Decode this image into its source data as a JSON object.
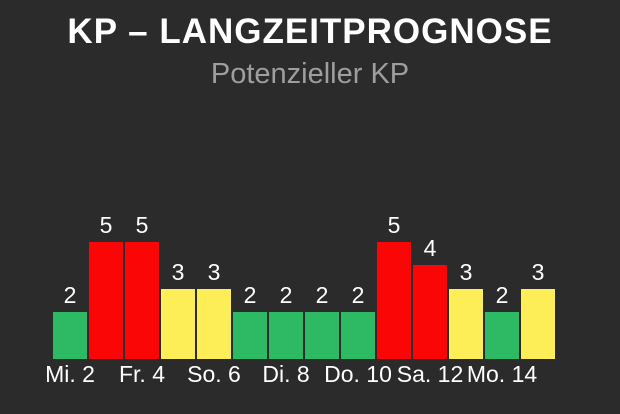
{
  "header": {
    "title": "KP – LANGZEITPROGNOSE",
    "subtitle": "Potenzieller KP"
  },
  "colors": {
    "background": "#2b2b2b",
    "title_text": "#ffffff",
    "subtitle_text": "#9e9e9e",
    "label_text": "#ffffff",
    "bar_green": "#2eba64",
    "bar_red": "#fa0606",
    "bar_yellow": "#fdee58"
  },
  "chart_data": {
    "type": "bar",
    "title": "KP – LANGZEITPROGNOSE",
    "subtitle": "Potenzieller KP",
    "values": [
      2,
      5,
      5,
      3,
      3,
      2,
      2,
      2,
      2,
      5,
      4,
      3,
      2,
      3
    ],
    "value_labels": [
      "2",
      "5",
      "5",
      "3",
      "3",
      "2",
      "2",
      "2",
      "2",
      "5",
      "4",
      "3",
      "2",
      "3"
    ],
    "bar_colors": [
      "green",
      "red",
      "red",
      "yellow",
      "yellow",
      "green",
      "green",
      "green",
      "green",
      "red",
      "red",
      "yellow",
      "green",
      "yellow"
    ],
    "color_map": {
      "green": "#2eba64",
      "red": "#fa0606",
      "yellow": "#fdee58"
    },
    "x_tick_labels": [
      "Mi. 2",
      "Fr. 4",
      "So. 6",
      "Di. 8",
      "Do. 10",
      "Sa. 12",
      "Mo. 14"
    ],
    "x_tick_bar_indices": [
      0,
      2,
      4,
      6,
      8,
      10,
      12
    ],
    "ylabel": "",
    "xlabel": "",
    "ylim": [
      0,
      5
    ],
    "grid": false,
    "legend": false,
    "background": "#2b2b2b"
  }
}
